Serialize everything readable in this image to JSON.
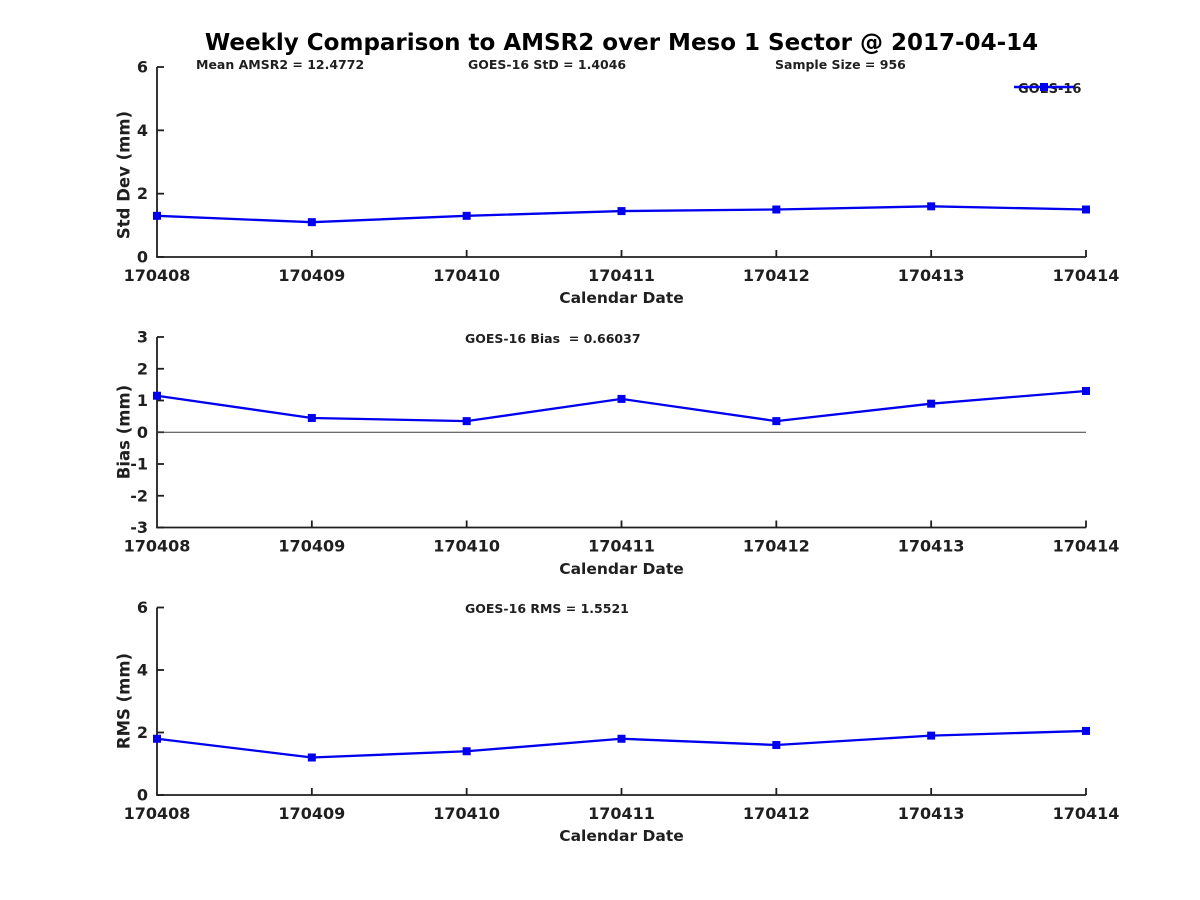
{
  "title": "Weekly Comparison to AMSR2 over Meso 1 Sector @ 2017-04-14",
  "legend": {
    "label": "GOES-16"
  },
  "colors": {
    "line": "#0000EE",
    "axis": "#1f1f1f",
    "text": "#1f1f1f",
    "background": "#ffffff"
  },
  "chart_data": [
    {
      "type": "line",
      "annotations": [
        "Mean AMSR2 = 12.4772",
        "GOES-16 StD = 1.4046",
        "Sample Size = 956"
      ],
      "categories": [
        "170408",
        "170409",
        "170410",
        "170411",
        "170412",
        "170413",
        "170414"
      ],
      "series": [
        {
          "name": "GOES-16",
          "values": [
            1.3,
            1.1,
            1.3,
            1.45,
            1.5,
            1.6,
            1.5
          ]
        }
      ],
      "xlabel": "Calendar Date",
      "ylabel": "Std Dev (mm)",
      "ylim": [
        0,
        6
      ],
      "yticks": [
        0,
        2,
        4,
        6
      ],
      "grid": false,
      "legend_position": "top-right",
      "zero_line": false
    },
    {
      "type": "line",
      "annotations": [
        "GOES-16 Bias  = 0.66037"
      ],
      "categories": [
        "170408",
        "170409",
        "170410",
        "170411",
        "170412",
        "170413",
        "170414"
      ],
      "series": [
        {
          "name": "GOES-16",
          "values": [
            1.15,
            0.45,
            0.35,
            1.05,
            0.35,
            0.9,
            1.3
          ]
        }
      ],
      "xlabel": "Calendar Date",
      "ylabel": "Bias (mm)",
      "ylim": [
        -3,
        3
      ],
      "yticks": [
        3,
        2,
        1,
        0,
        -1,
        -2,
        -3
      ],
      "grid": false,
      "legend_position": "none",
      "zero_line": true
    },
    {
      "type": "line",
      "annotations": [
        "GOES-16 RMS = 1.5521"
      ],
      "categories": [
        "170408",
        "170409",
        "170410",
        "170411",
        "170412",
        "170413",
        "170414"
      ],
      "series": [
        {
          "name": "GOES-16",
          "values": [
            1.8,
            1.2,
            1.4,
            1.8,
            1.6,
            1.9,
            2.05
          ]
        }
      ],
      "xlabel": "Calendar Date",
      "ylabel": "RMS (mm)",
      "ylim": [
        0,
        6
      ],
      "yticks": [
        0,
        2,
        4,
        6
      ],
      "grid": false,
      "legend_position": "none",
      "zero_line": false
    }
  ]
}
